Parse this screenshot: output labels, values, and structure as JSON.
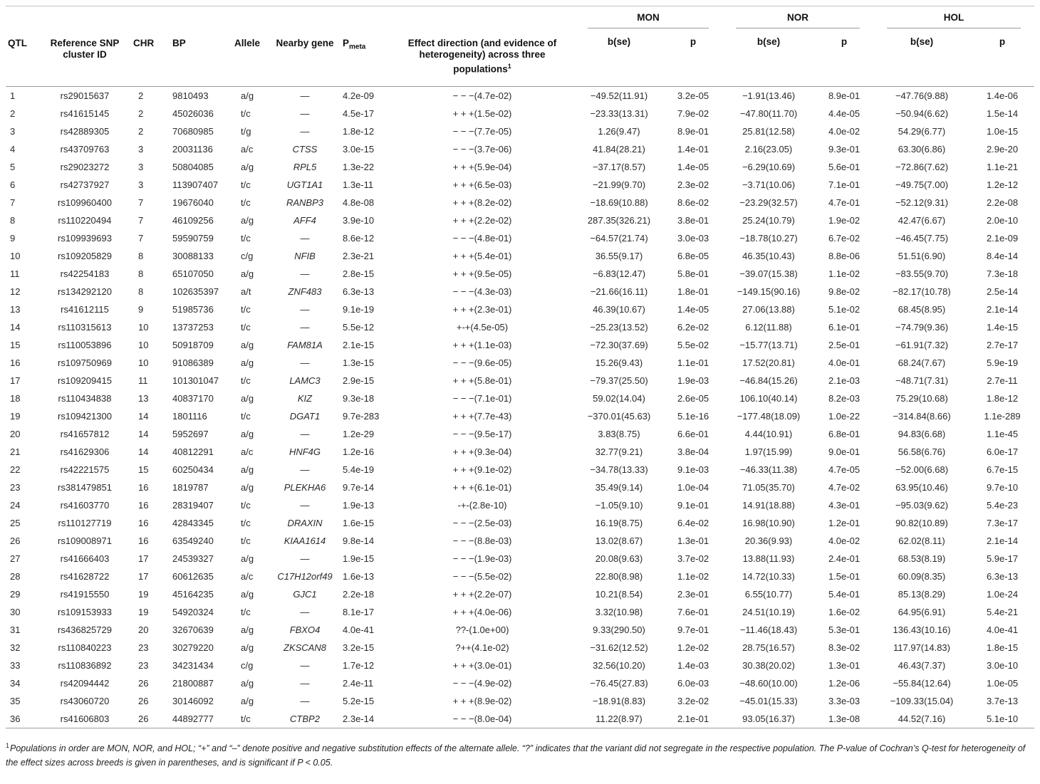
{
  "table": {
    "groups": {
      "mon": "MON",
      "nor": "NOR",
      "hol": "HOL"
    },
    "headers": {
      "qtl": "QTL",
      "snp": "Reference SNP cluster ID",
      "chr": "CHR",
      "bp": "BP",
      "allele": "Allele",
      "gene": "Nearby gene",
      "pmeta_main": "P",
      "pmeta_sub": "meta",
      "effect": "Effect direction (and evidence of heterogeneity) across three populations",
      "effect_sup": "1",
      "bse": "b(se)",
      "p": "p"
    },
    "columns": [
      "qtl",
      "snp",
      "chr",
      "bp",
      "allele",
      "gene",
      "pmeta",
      "effect",
      "mon_bse",
      "mon_p",
      "nor_bse",
      "nor_p",
      "hol_bse",
      "hol_p"
    ],
    "rows": [
      [
        "1",
        "rs29015637",
        "2",
        "9810493",
        "a/g",
        "—",
        "4.2e-09",
        "− − −(4.7e-02)",
        "−49.52(11.91)",
        "3.2e-05",
        "−1.91(13.46)",
        "8.9e-01",
        "−47.76(9.88)",
        "1.4e-06"
      ],
      [
        "2",
        "rs41615145",
        "2",
        "45026036",
        "t/c",
        "—",
        "4.5e-17",
        "+ + +(1.5e-02)",
        "−23.33(13.31)",
        "7.9e-02",
        "−47.80(11.70)",
        "4.4e-05",
        "−50.94(6.62)",
        "1.5e-14"
      ],
      [
        "3",
        "rs42889305",
        "2",
        "70680985",
        "t/g",
        "—",
        "1.8e-12",
        "− − −(7.7e-05)",
        "1.26(9.47)",
        "8.9e-01",
        "25.81(12.58)",
        "4.0e-02",
        "54.29(6.77)",
        "1.0e-15"
      ],
      [
        "4",
        "rs43709763",
        "3",
        "20031136",
        "a/c",
        "CTSS",
        "3.0e-15",
        "− − −(3.7e-06)",
        "41.84(28.21)",
        "1.4e-01",
        "2.16(23.05)",
        "9.3e-01",
        "63.30(6.86)",
        "2.9e-20"
      ],
      [
        "5",
        "rs29023272",
        "3",
        "50804085",
        "a/g",
        "RPL5",
        "1.3e-22",
        "+ + +(5.9e-04)",
        "−37.17(8.57)",
        "1.4e-05",
        "−6.29(10.69)",
        "5.6e-01",
        "−72.86(7.62)",
        "1.1e-21"
      ],
      [
        "6",
        "rs42737927",
        "3",
        "113907407",
        "t/c",
        "UGT1A1",
        "1.3e-11",
        "+ + +(6.5e-03)",
        "−21.99(9.70)",
        "2.3e-02",
        "−3.71(10.06)",
        "7.1e-01",
        "−49.75(7.00)",
        "1.2e-12"
      ],
      [
        "7",
        "rs109960400",
        "7",
        "19676040",
        "t/c",
        "RANBP3",
        "4.8e-08",
        "+ + +(8.2e-02)",
        "−18.69(10.88)",
        "8.6e-02",
        "−23.29(32.57)",
        "4.7e-01",
        "−52.12(9.31)",
        "2.2e-08"
      ],
      [
        "8",
        "rs110220494",
        "7",
        "46109256",
        "a/g",
        "AFF4",
        "3.9e-10",
        "+ + +(2.2e-02)",
        "287.35(326.21)",
        "3.8e-01",
        "25.24(10.79)",
        "1.9e-02",
        "42.47(6.67)",
        "2.0e-10"
      ],
      [
        "9",
        "rs109939693",
        "7",
        "59590759",
        "t/c",
        "—",
        "8.6e-12",
        "− − −(4.8e-01)",
        "−64.57(21.74)",
        "3.0e-03",
        "−18.78(10.27)",
        "6.7e-02",
        "−46.45(7.75)",
        "2.1e-09"
      ],
      [
        "10",
        "rs109205829",
        "8",
        "30088133",
        "c/g",
        "NFIB",
        "2.3e-21",
        "+ + +(5.4e-01)",
        "36.55(9.17)",
        "6.8e-05",
        "46.35(10.43)",
        "8.8e-06",
        "51.51(6.90)",
        "8.4e-14"
      ],
      [
        "11",
        "rs42254183",
        "8",
        "65107050",
        "a/g",
        "—",
        "2.8e-15",
        "+ + +(9.5e-05)",
        "−6.83(12.47)",
        "5.8e-01",
        "−39.07(15.38)",
        "1.1e-02",
        "−83.55(9.70)",
        "7.3e-18"
      ],
      [
        "12",
        "rs134292120",
        "8",
        "102635397",
        "a/t",
        "ZNF483",
        "6.3e-13",
        "− − −(4.3e-03)",
        "−21.66(16.11)",
        "1.8e-01",
        "−149.15(90.16)",
        "9.8e-02",
        "−82.17(10.78)",
        "2.5e-14"
      ],
      [
        "13",
        "rs41612115",
        "9",
        "51985736",
        "t/c",
        "—",
        "9.1e-19",
        "+ + +(2.3e-01)",
        "46.39(10.67)",
        "1.4e-05",
        "27.06(13.88)",
        "5.1e-02",
        "68.45(8.95)",
        "2.1e-14"
      ],
      [
        "14",
        "rs110315613",
        "10",
        "13737253",
        "t/c",
        "—",
        "5.5e-12",
        "+-+(4.5e-05)",
        "−25.23(13.52)",
        "6.2e-02",
        "6.12(11.88)",
        "6.1e-01",
        "−74.79(9.36)",
        "1.4e-15"
      ],
      [
        "15",
        "rs110053896",
        "10",
        "50918709",
        "a/g",
        "FAM81A",
        "2.1e-15",
        "+ + +(1.1e-03)",
        "−72.30(37.69)",
        "5.5e-02",
        "−15.77(13.71)",
        "2.5e-01",
        "−61.91(7.32)",
        "2.7e-17"
      ],
      [
        "16",
        "rs109750969",
        "10",
        "91086389",
        "a/g",
        "—",
        "1.3e-15",
        "− − −(9.6e-05)",
        "15.26(9.43)",
        "1.1e-01",
        "17.52(20.81)",
        "4.0e-01",
        "68.24(7.67)",
        "5.9e-19"
      ],
      [
        "17",
        "rs109209415",
        "11",
        "101301047",
        "t/c",
        "LAMC3",
        "2.9e-15",
        "+ + +(5.8e-01)",
        "−79.37(25.50)",
        "1.9e-03",
        "−46.84(15.26)",
        "2.1e-03",
        "−48.71(7.31)",
        "2.7e-11"
      ],
      [
        "18",
        "rs110434838",
        "13",
        "40837170",
        "a/g",
        "KIZ",
        "9.3e-18",
        "− − −(7.1e-01)",
        "59.02(14.04)",
        "2.6e-05",
        "106.10(40.14)",
        "8.2e-03",
        "75.29(10.68)",
        "1.8e-12"
      ],
      [
        "19",
        "rs109421300",
        "14",
        "1801116",
        "t/c",
        "DGAT1",
        "9.7e-283",
        "+ + +(7.7e-43)",
        "−370.01(45.63)",
        "5.1e-16",
        "−177.48(18.09)",
        "1.0e-22",
        "−314.84(8.66)",
        "1.1e-289"
      ],
      [
        "20",
        "rs41657812",
        "14",
        "5952697",
        "a/g",
        "—",
        "1.2e-29",
        "− − −(9.5e-17)",
        "3.83(8.75)",
        "6.6e-01",
        "4.44(10.91)",
        "6.8e-01",
        "94.83(6.68)",
        "1.1e-45"
      ],
      [
        "21",
        "rs41629306",
        "14",
        "40812291",
        "a/c",
        "HNF4G",
        "1.2e-16",
        "+ + +(9.3e-04)",
        "32.77(9.21)",
        "3.8e-04",
        "1.97(15.99)",
        "9.0e-01",
        "56.58(6.76)",
        "6.0e-17"
      ],
      [
        "22",
        "rs42221575",
        "15",
        "60250434",
        "a/g",
        "—",
        "5.4e-19",
        "+ + +(9.1e-02)",
        "−34.78(13.33)",
        "9.1e-03",
        "−46.33(11.38)",
        "4.7e-05",
        "−52.00(6.68)",
        "6.7e-15"
      ],
      [
        "23",
        "rs381479851",
        "16",
        "1819787",
        "a/g",
        "PLEKHA6",
        "9.7e-14",
        "+ + +(6.1e-01)",
        "35.49(9.14)",
        "1.0e-04",
        "71.05(35.70)",
        "4.7e-02",
        "63.95(10.46)",
        "9.7e-10"
      ],
      [
        "24",
        "rs41603770",
        "16",
        "28319407",
        "t/c",
        "—",
        "1.9e-13",
        "-+-(2.8e-10)",
        "−1.05(9.10)",
        "9.1e-01",
        "14.91(18.88)",
        "4.3e-01",
        "−95.03(9.62)",
        "5.4e-23"
      ],
      [
        "25",
        "rs110127719",
        "16",
        "42843345",
        "t/c",
        "DRAXIN",
        "1.6e-15",
        "− − −(2.5e-03)",
        "16.19(8.75)",
        "6.4e-02",
        "16.98(10.90)",
        "1.2e-01",
        "90.82(10.89)",
        "7.3e-17"
      ],
      [
        "26",
        "rs109008971",
        "16",
        "63549240",
        "t/c",
        "KIAA1614",
        "9.8e-14",
        "− − −(8.8e-03)",
        "13.02(8.67)",
        "1.3e-01",
        "20.36(9.93)",
        "4.0e-02",
        "62.02(8.11)",
        "2.1e-14"
      ],
      [
        "27",
        "rs41666403",
        "17",
        "24539327",
        "a/g",
        "—",
        "1.9e-15",
        "− − −(1.9e-03)",
        "20.08(9.63)",
        "3.7e-02",
        "13.88(11.93)",
        "2.4e-01",
        "68.53(8.19)",
        "5.9e-17"
      ],
      [
        "28",
        "rs41628722",
        "17",
        "60612635",
        "a/c",
        "C17H12orf49",
        "1.6e-13",
        "− − −(5.5e-02)",
        "22.80(8.98)",
        "1.1e-02",
        "14.72(10.33)",
        "1.5e-01",
        "60.09(8.35)",
        "6.3e-13"
      ],
      [
        "29",
        "rs41915550",
        "19",
        "45164235",
        "a/g",
        "GJC1",
        "2.2e-18",
        "+ + +(2.2e-07)",
        "10.21(8.54)",
        "2.3e-01",
        "6.55(10.77)",
        "5.4e-01",
        "85.13(8.29)",
        "1.0e-24"
      ],
      [
        "30",
        "rs109153933",
        "19",
        "54920324",
        "t/c",
        "—",
        "8.1e-17",
        "+ + +(4.0e-06)",
        "3.32(10.98)",
        "7.6e-01",
        "24.51(10.19)",
        "1.6e-02",
        "64.95(6.91)",
        "5.4e-21"
      ],
      [
        "31",
        "rs436825729",
        "20",
        "32670639",
        "a/g",
        "FBXO4",
        "4.0e-41",
        "??-(1.0e+00)",
        "9.33(290.50)",
        "9.7e-01",
        "−11.46(18.43)",
        "5.3e-01",
        "136.43(10.16)",
        "4.0e-41"
      ],
      [
        "32",
        "rs110840223",
        "23",
        "30279220",
        "a/g",
        "ZKSCAN8",
        "3.2e-15",
        "?++(4.1e-02)",
        "−31.62(12.52)",
        "1.2e-02",
        "28.75(16.57)",
        "8.3e-02",
        "117.97(14.83)",
        "1.8e-15"
      ],
      [
        "33",
        "rs110836892",
        "23",
        "34231434",
        "c/g",
        "—",
        "1.7e-12",
        "+ + +(3.0e-01)",
        "32.56(10.20)",
        "1.4e-03",
        "30.38(20.02)",
        "1.3e-01",
        "46.43(7.37)",
        "3.0e-10"
      ],
      [
        "34",
        "rs42094442",
        "26",
        "21800887",
        "a/g",
        "—",
        "2.4e-11",
        "− − −(4.9e-02)",
        "−76.45(27.83)",
        "6.0e-03",
        "−48.60(10.00)",
        "1.2e-06",
        "−55.84(12.64)",
        "1.0e-05"
      ],
      [
        "35",
        "rs43060720",
        "26",
        "30146092",
        "a/g",
        "—",
        "5.2e-15",
        "+ + +(8.9e-02)",
        "−18.91(8.83)",
        "3.2e-02",
        "−45.01(15.33)",
        "3.3e-03",
        "−109.33(15.04)",
        "3.7e-13"
      ],
      [
        "36",
        "rs41606803",
        "26",
        "44892777",
        "t/c",
        "CTBP2",
        "2.3e-14",
        "− − −(8.0e-04)",
        "11.22(8.97)",
        "2.1e-01",
        "93.05(16.37)",
        "1.3e-08",
        "44.52(7.16)",
        "5.1e-10"
      ]
    ]
  },
  "footnote": {
    "sup": "1",
    "text": "Populations in order are MON, NOR, and HOL; “+” and “–” denote positive and negative substitution effects of the alternate allele. “?” indicates that the variant did not segregate in the respective population. The P-value of Cochran’s Q-test for heterogeneity of the effect sizes across breeds is given in parentheses, and is significant if P < 0.05."
  }
}
